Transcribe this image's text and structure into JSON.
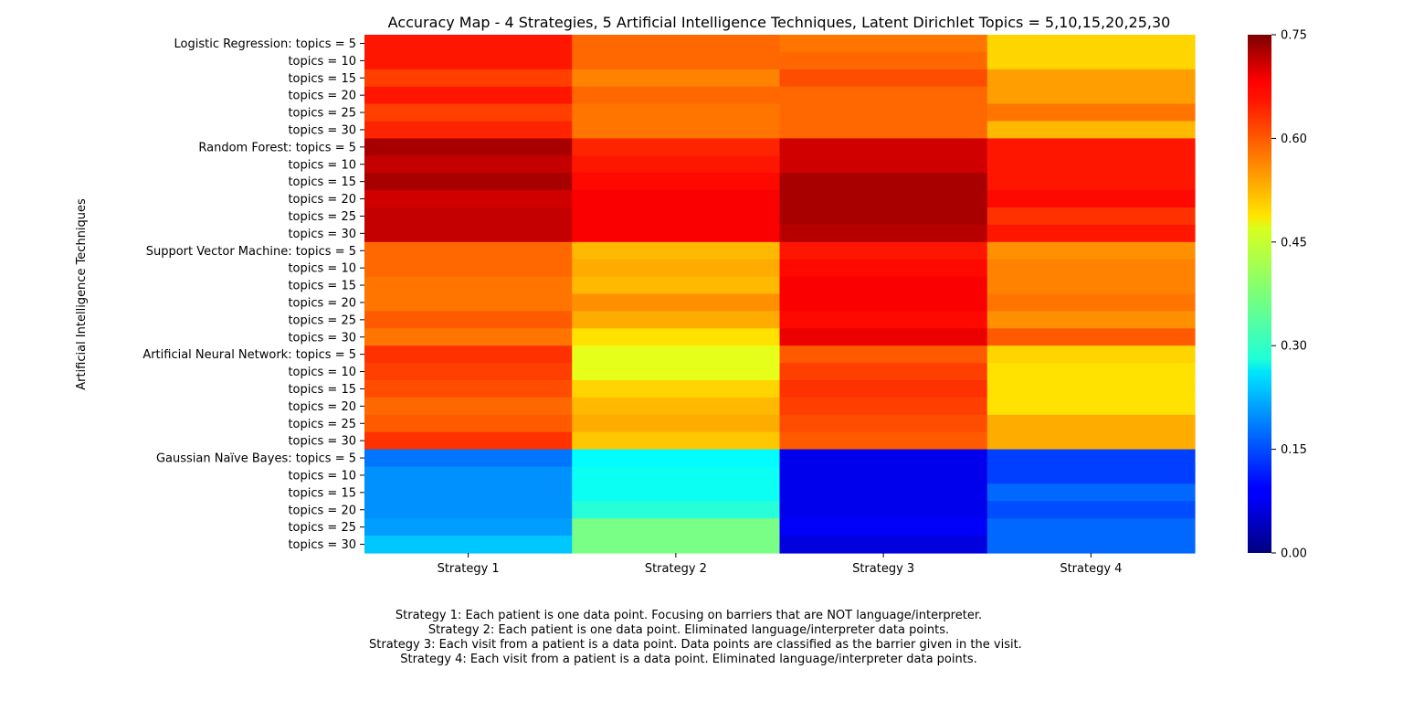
{
  "chart_data": {
    "type": "heatmap",
    "title": "Accuracy Map - 4 Strategies, 5 Artificial Intelligence Techniques, Latent Dirichlet Topics = 5,10,15,20,25,30",
    "xlabel": "",
    "ylabel": "Artificial Intelligence Techniques",
    "colormap": "jet",
    "vmin": 0.0,
    "vmax": 0.75,
    "colorbar_ticks": [
      "0.00",
      "0.15",
      "0.30",
      "0.45",
      "0.60",
      "0.75"
    ],
    "x_categories": [
      "Strategy 1",
      "Strategy 2",
      "Strategy 3",
      "Strategy 4"
    ],
    "y_categories": [
      "Logistic Regression:  topics = 5",
      "topics = 10",
      "topics = 15",
      "topics = 20",
      "topics = 25",
      "topics = 30",
      "Random Forest:  topics = 5",
      "topics = 10",
      "topics = 15",
      "topics = 20",
      "topics = 25",
      "topics = 30",
      "Support Vector Machine:  topics = 5",
      "topics = 10",
      "topics = 15",
      "topics = 20",
      "topics = 25",
      "topics = 30",
      "Artificial Neural Network:  topics = 5",
      "topics = 10",
      "topics = 15",
      "topics = 20",
      "topics = 25",
      "topics = 30",
      "Gaussian Naïve Bayes:  topics = 5",
      "topics = 10",
      "topics = 15",
      "topics = 20",
      "topics = 25",
      "topics = 30"
    ],
    "values": [
      [
        0.64,
        0.58,
        0.57,
        0.5
      ],
      [
        0.64,
        0.58,
        0.58,
        0.5
      ],
      [
        0.61,
        0.56,
        0.6,
        0.54
      ],
      [
        0.64,
        0.58,
        0.58,
        0.54
      ],
      [
        0.61,
        0.57,
        0.58,
        0.57
      ],
      [
        0.63,
        0.57,
        0.58,
        0.52
      ],
      [
        0.72,
        0.63,
        0.69,
        0.64
      ],
      [
        0.7,
        0.64,
        0.69,
        0.64
      ],
      [
        0.72,
        0.65,
        0.72,
        0.64
      ],
      [
        0.69,
        0.66,
        0.72,
        0.65
      ],
      [
        0.7,
        0.66,
        0.72,
        0.62
      ],
      [
        0.7,
        0.66,
        0.71,
        0.64
      ],
      [
        0.58,
        0.52,
        0.64,
        0.55
      ],
      [
        0.58,
        0.53,
        0.65,
        0.56
      ],
      [
        0.57,
        0.52,
        0.66,
        0.56
      ],
      [
        0.57,
        0.55,
        0.66,
        0.57
      ],
      [
        0.59,
        0.53,
        0.65,
        0.55
      ],
      [
        0.57,
        0.49,
        0.67,
        0.59
      ],
      [
        0.62,
        0.45,
        0.59,
        0.5
      ],
      [
        0.61,
        0.45,
        0.61,
        0.49
      ],
      [
        0.6,
        0.5,
        0.62,
        0.49
      ],
      [
        0.58,
        0.52,
        0.61,
        0.49
      ],
      [
        0.59,
        0.53,
        0.6,
        0.53
      ],
      [
        0.62,
        0.51,
        0.59,
        0.53
      ],
      [
        0.18,
        0.28,
        0.08,
        0.14
      ],
      [
        0.2,
        0.29,
        0.08,
        0.14
      ],
      [
        0.2,
        0.29,
        0.08,
        0.17
      ],
      [
        0.2,
        0.31,
        0.08,
        0.15
      ],
      [
        0.21,
        0.37,
        0.09,
        0.17
      ],
      [
        0.24,
        0.37,
        0.07,
        0.17
      ]
    ],
    "notes": [
      "Strategy 1:  Each patient is one data point.  Focusing on barriers that are NOT language/interpreter.",
      "Strategy 2:  Each patient is one data point.  Eliminated language/interpreter data points.",
      "Strategy 3:  Each visit from a patient is a data point.  Data points are classified as the barrier given in the visit.",
      "Strategy 4:  Each visit from a patient is a data point.  Eliminated language/interpreter data points."
    ]
  }
}
